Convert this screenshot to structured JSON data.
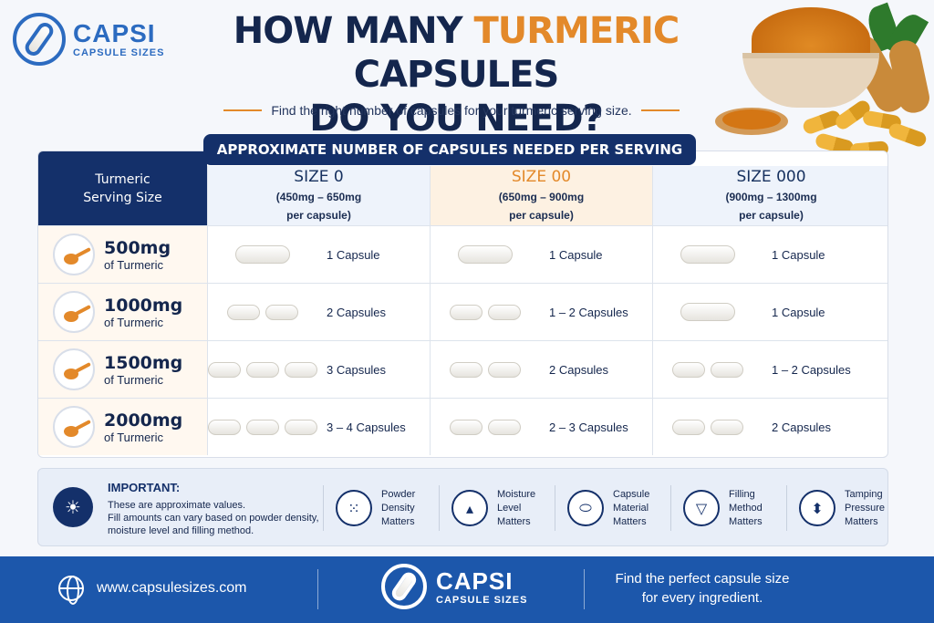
{
  "brand": {
    "name": "CAPSI",
    "sub": "CAPSULE SIZES"
  },
  "title": {
    "line1_pre": "HOW MANY ",
    "line1_accent": "TURMERIC",
    "line1_post": " CAPSULES",
    "line2": "DO YOU NEED?"
  },
  "subtitle": "Find the right number of capsules for your turmeric serving size.",
  "table": {
    "banner": "APPROXIMATE NUMBER OF CAPSULES NEEDED PER SERVING",
    "first_header_line1": "Turmeric",
    "first_header_line2": "Serving Size",
    "columns": [
      {
        "size": "SIZE 0",
        "range1": "(450mg – 650mg",
        "range2": "per capsule)",
        "color": "#16305e",
        "bg": "#eef3fb"
      },
      {
        "size": "SIZE 00",
        "range1": "(650mg – 900mg",
        "range2": "per capsule)",
        "color": "#e3892a",
        "bg": "#fdf1e2"
      },
      {
        "size": "SIZE 000",
        "range1": "(900mg – 1300mg",
        "range2": "per capsule)",
        "color": "#16305e",
        "bg": "#eef3fb"
      }
    ],
    "rows": [
      {
        "amount": "500mg",
        "unit": "of Turmeric",
        "cells": [
          {
            "pills": 1,
            "qty": "1 Capsule"
          },
          {
            "pills": 1,
            "qty": "1 Capsule"
          },
          {
            "pills": 1,
            "qty": "1 Capsule"
          }
        ]
      },
      {
        "amount": "1000mg",
        "unit": "of Turmeric",
        "cells": [
          {
            "pills": 2,
            "qty": "2 Capsules"
          },
          {
            "pills": 2,
            "qty": "1 – 2 Capsules"
          },
          {
            "pills": 1,
            "qty": "1 Capsule"
          }
        ]
      },
      {
        "amount": "1500mg",
        "unit": "of Turmeric",
        "cells": [
          {
            "pills": 3,
            "qty": "3 Capsules"
          },
          {
            "pills": 2,
            "qty": "2 Capsules"
          },
          {
            "pills": 2,
            "qty": "1 – 2 Capsules"
          }
        ]
      },
      {
        "amount": "2000mg",
        "unit": "of Turmeric",
        "cells": [
          {
            "pills": 3,
            "qty": "3 – 4 Capsules"
          },
          {
            "pills": 2,
            "qty": "2 – 3 Capsules"
          },
          {
            "pills": 2,
            "qty": "2 Capsules"
          }
        ]
      }
    ]
  },
  "important": {
    "title": "IMPORTANT:",
    "line1": "These are approximate values.",
    "line2": "Fill amounts can vary based on powder density, moisture level and filling method.",
    "factors": [
      {
        "icon": "powder-density-icon",
        "l1": "Powder",
        "l2": "Density",
        "l3": "Matters"
      },
      {
        "icon": "moisture-drop-icon",
        "l1": "Moisture",
        "l2": "Level",
        "l3": "Matters"
      },
      {
        "icon": "capsule-icon",
        "l1": "Capsule",
        "l2": "Material",
        "l3": "Matters"
      },
      {
        "icon": "funnel-icon",
        "l1": "Filling",
        "l2": "Method",
        "l3": "Matters"
      },
      {
        "icon": "tamper-icon",
        "l1": "Tamping",
        "l2": "Pressure",
        "l3": "Matters"
      }
    ]
  },
  "footer": {
    "url": "www.capsulesizes.com",
    "tagline1": "Find the perfect capsule size",
    "tagline2": "for every ingredient."
  }
}
